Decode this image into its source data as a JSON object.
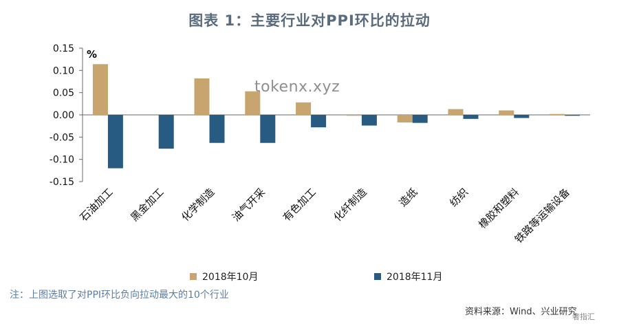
{
  "chart_data": {
    "type": "bar",
    "title": "图表 1：主要行业对PPI环比的拉动",
    "unit_label": "%",
    "categories": [
      "石油加工",
      "黑金加工",
      "化学制造",
      "油气开采",
      "有色加工",
      "化纤制造",
      "造纸",
      "纺织",
      "橡胶和塑料",
      "铁路等运输设备"
    ],
    "series": [
      {
        "name": "2018年10月",
        "color": "#c8a46e",
        "values": [
          0.114,
          0.0,
          0.082,
          0.053,
          0.028,
          -0.002,
          -0.017,
          0.013,
          0.01,
          0.002
        ]
      },
      {
        "name": "2018年11月",
        "color": "#275b82",
        "values": [
          -0.12,
          -0.076,
          -0.063,
          -0.063,
          -0.028,
          -0.024,
          -0.018,
          -0.009,
          -0.007,
          -0.002
        ]
      }
    ],
    "ylim": [
      -0.15,
      0.15
    ],
    "yticks": [
      0.15,
      0.1,
      0.05,
      0.0,
      -0.05,
      -0.1,
      -0.15
    ],
    "ytick_labels": [
      "0.15",
      "0.10",
      "0.05",
      "0.00",
      "-0.05",
      "-0.10",
      "-0.15"
    ],
    "xlabel": "",
    "ylabel": "",
    "grid": false,
    "legend_position": "bottom"
  },
  "note": "注：上图选取了对PPI环比负向拉动最大的10个行业",
  "source": "资料来源：Wind、兴业研究",
  "watermark": "tokenx.xyz",
  "corner_mark": "奢指汇"
}
